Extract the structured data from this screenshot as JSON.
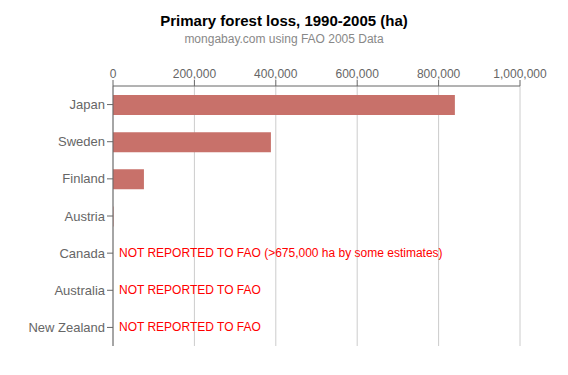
{
  "chart_data": {
    "type": "bar",
    "orientation": "horizontal",
    "title": "Primary forest loss, 1990-2005 (ha)",
    "subtitle": "mongabay.com using FAO 2005 Data",
    "categories": [
      "Japan",
      "Sweden",
      "Finland",
      "Austria",
      "Canada",
      "Australia",
      "New Zealand"
    ],
    "values": [
      840000,
      388000,
      76000,
      1200,
      null,
      null,
      null
    ],
    "color": "#c8716a",
    "annotations": [
      {
        "category": "Canada",
        "text": "NOT REPORTED TO FAO (>675,000 ha by some estimates)",
        "color": "#ff0000"
      },
      {
        "category": "Australia",
        "text": "NOT REPORTED TO FAO",
        "color": "#ff0000"
      },
      {
        "category": "New Zealand",
        "text": "NOT REPORTED TO FAO",
        "color": "#ff0000"
      }
    ],
    "xlim": [
      0,
      1000000
    ],
    "xticks": [
      0,
      {
        "value": 200000,
        "label": "200,000"
      },
      {
        "value": 400000,
        "label": "400,000"
      },
      {
        "value": 600000,
        "label": "600,000"
      },
      {
        "value": 800000,
        "label": "800,000"
      },
      {
        "value": 1000000,
        "label": "1,000,000"
      }
    ],
    "grid": true
  }
}
